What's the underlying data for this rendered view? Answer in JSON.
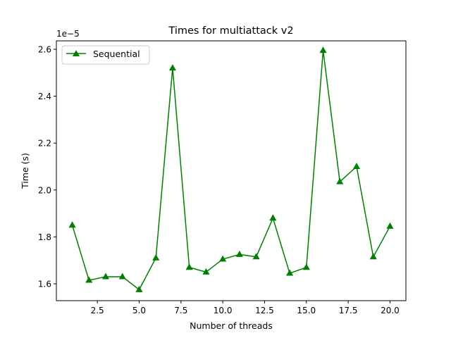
{
  "chart_data": {
    "type": "line",
    "title": "Times for multiattack v2",
    "xlabel": "Number of threads",
    "ylabel": "Time (s)",
    "y_offset_label": "1e−5",
    "xlim": [
      0.05,
      20.95
    ],
    "ylim": [
      1.528,
      2.636
    ],
    "x_ticks": [
      2.5,
      5.0,
      7.5,
      10.0,
      12.5,
      15.0,
      17.5,
      20.0
    ],
    "x_tick_labels": [
      "2.5",
      "5.0",
      "7.5",
      "10.0",
      "12.5",
      "15.0",
      "17.5",
      "20.0"
    ],
    "y_ticks": [
      1.6,
      1.8,
      2.0,
      2.2,
      2.4,
      2.6
    ],
    "y_tick_labels": [
      "1.6",
      "1.8",
      "2.0",
      "2.2",
      "2.4",
      "2.6"
    ],
    "grid": false,
    "legend_position": "upper-left",
    "series": [
      {
        "name": "Sequential",
        "color": "#008000",
        "marker": "triangle-up",
        "x": [
          1,
          2,
          3,
          4,
          5,
          6,
          7,
          8,
          9,
          10,
          11,
          12,
          13,
          14,
          15,
          16,
          17,
          18,
          19,
          20
        ],
        "values": [
          1.85,
          1.615,
          1.63,
          1.63,
          1.575,
          1.71,
          2.52,
          1.67,
          1.65,
          1.705,
          1.725,
          1.715,
          1.88,
          1.645,
          1.67,
          2.595,
          2.035,
          2.1,
          1.715,
          1.845
        ]
      }
    ]
  }
}
